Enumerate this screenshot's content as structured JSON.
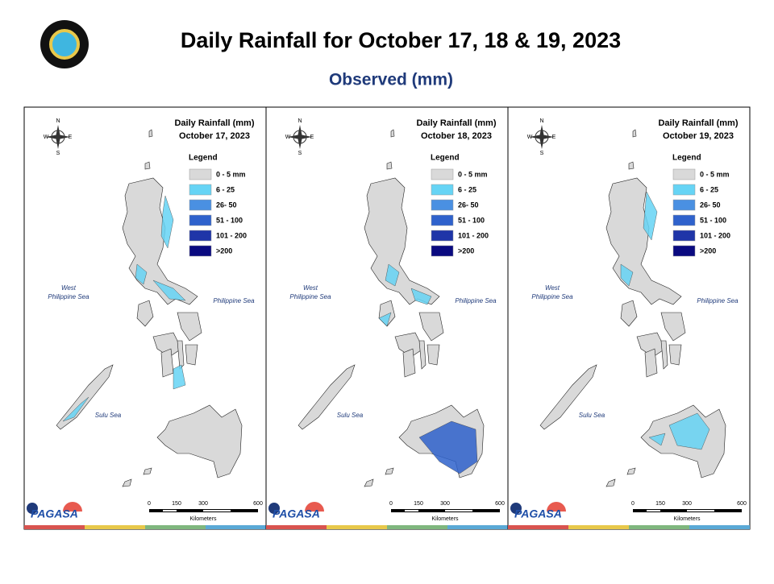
{
  "header": {
    "title": "Daily Rainfall for October 17, 18 & 19, 2023",
    "subtitle": "Observed (mm)"
  },
  "legend": {
    "title": "Legend",
    "items": [
      {
        "label": "0 - 5 mm",
        "color": "#d9d9d9"
      },
      {
        "label": "6 - 25",
        "color": "#66d4f5"
      },
      {
        "label": "26- 50",
        "color": "#4a90e2"
      },
      {
        "label": "51 - 100",
        "color": "#2f62cc"
      },
      {
        "label": "101 - 200",
        "color": "#1f35a8"
      },
      {
        "label": ">200",
        "color": "#0a0a80"
      }
    ]
  },
  "compass": [
    "N",
    "S",
    "W",
    "E"
  ],
  "seas": {
    "west_philippine_sea": [
      "West",
      "Philippine Sea"
    ],
    "philippine_sea": "Philippine Sea",
    "sulu_sea": "Sulu Sea"
  },
  "scale": {
    "ticks": [
      "0",
      "150",
      "300",
      "600"
    ],
    "unit": "Kilometers"
  },
  "logo_text": "PAGASA",
  "panels": [
    {
      "title": "Daily Rainfall (mm)",
      "date": "October 17, 2023"
    },
    {
      "title": "Daily Rainfall (mm)",
      "date": "October 18, 2023"
    },
    {
      "title": "Daily Rainfall (mm)",
      "date": "October 19, 2023"
    }
  ]
}
